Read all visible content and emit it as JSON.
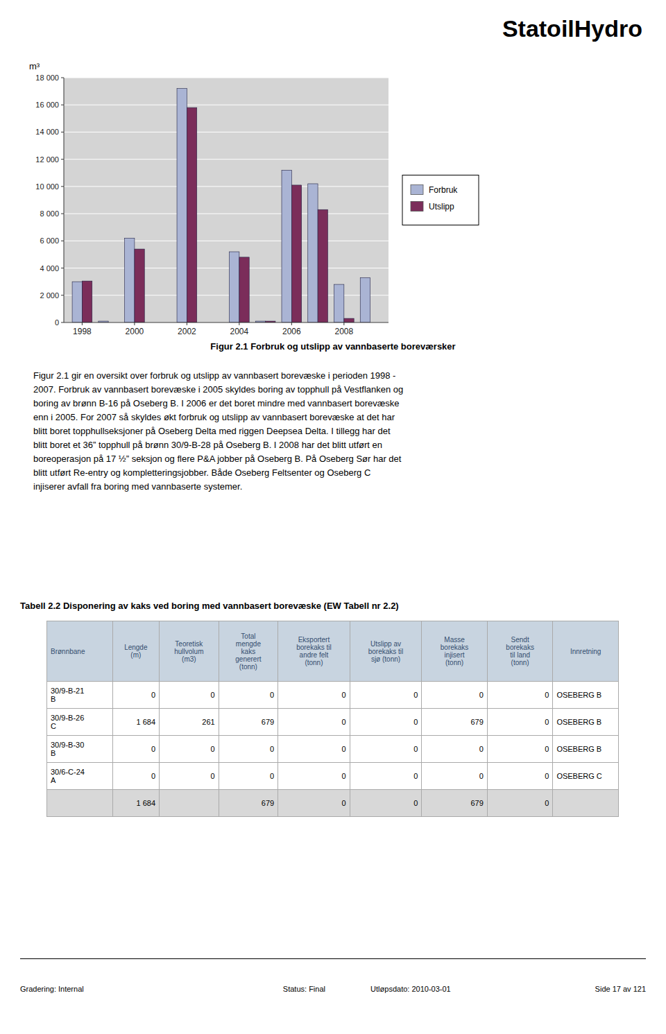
{
  "logo_text": "StatoilHydro",
  "chart_data": {
    "type": "bar",
    "y_label": "m³",
    "categories": [
      "1998",
      null,
      "2000",
      null,
      "2002",
      null,
      "2004",
      null,
      "2006",
      null,
      "2008",
      null
    ],
    "series": [
      {
        "name": "Forbruk",
        "color": "#aab4d4",
        "values": [
          3000,
          100,
          6200,
          0,
          17200,
          0,
          5200,
          100,
          11200,
          10200,
          2800,
          3300
        ]
      },
      {
        "name": "Utslipp",
        "color": "#7b2d5a",
        "values": [
          3050,
          0,
          5400,
          0,
          15800,
          0,
          4800,
          100,
          10100,
          8300,
          300,
          0
        ]
      }
    ],
    "ylim": [
      0,
      18000
    ],
    "yticks": [
      0,
      {
        "value": 2000,
        "label": "2 000"
      },
      {
        "value": 4000,
        "label": "4 000"
      },
      {
        "value": 6000,
        "label": "6 000"
      },
      {
        "value": 8000,
        "label": "8 000"
      },
      {
        "value": 10000,
        "label": "10 000"
      },
      {
        "value": 12000,
        "label": "12 000"
      },
      {
        "value": 14000,
        "label": "14 000"
      },
      {
        "value": 16000,
        "label": "16 000"
      },
      {
        "value": 18000,
        "label": "18 000"
      }
    ],
    "grid": true,
    "legend": "right"
  },
  "figure_caption": "Figur 2.1 Forbruk og utslipp av vannbaserte boreværsker",
  "body_text": [
    "Figur 2.1 gir en oversikt over forbruk og utslipp av vannbasert borevæske i perioden 1998 -",
    "2007. Forbruk av vannbasert borevæske i 2005 skyldes boring av topphull på Vestflanken og",
    "boring av brønn B-16 på Oseberg B. I 2006 er det boret mindre med vannbasert borevæske",
    "enn i 2005. For 2007 så skyldes økt forbruk og utslipp av vannbasert borevæske at det har",
    "blitt boret topphullseksjoner på Oseberg Delta med riggen Deepsea Delta. I tillegg har det",
    "blitt boret et 36” topphull på brønn 30/9-B-28 på Oseberg B. I 2008 har det blitt utført en",
    "boreoperasjon på 17 ½” seksjon og flere P&A jobber på Oseberg B. På Oseberg Sør har det",
    "blitt utført Re-entry og kompletteringsjobber. Både Oseberg Feltsenter og Oseberg C",
    "injiserer avfall fra boring med vannbaserte systemer."
  ],
  "table": {
    "title": "Tabell 2.2 Disponering av kaks ved boring med vannbasert borevæske (EW Tabell nr 2.2)",
    "columns": [
      "Brønnbane",
      "Lengde\n(m)",
      "Teoretisk\nhullvolum\n(m3)",
      "Total\nmengde\nkaks\ngenerert\n(tonn)",
      "Eksportert\nborekaks til\nandre felt\n(tonn)",
      "Utslipp av\nborekaks til\nsjø (tonn)",
      "Masse\nborekaks\ninjisert\n(tonn)",
      "Sendt\nborekaks\ntil land\n(tonn)",
      "Innretning"
    ],
    "rows": [
      [
        "30/9-B-21\nB",
        "0",
        "0",
        "0",
        "0",
        "0",
        "0",
        "0",
        "OSEBERG B"
      ],
      [
        "30/9-B-26\nC",
        "1 684",
        "261",
        "679",
        "0",
        "0",
        "679",
        "0",
        "OSEBERG B"
      ],
      [
        "30/9-B-30\nB",
        "0",
        "0",
        "0",
        "0",
        "0",
        "0",
        "0",
        "OSEBERG B"
      ],
      [
        "30/6-C-24\nA",
        "0",
        "0",
        "0",
        "0",
        "0",
        "0",
        "0",
        "OSEBERG C"
      ],
      [
        null,
        "1 684",
        null,
        "679",
        "0",
        "0",
        "679",
        "0",
        null
      ]
    ]
  },
  "footer": {
    "left": "Gradering: Internal",
    "center_1": "Status: Final",
    "center_2": "Utløpsdato: 2010-03-01",
    "right": "Side 17 av 121"
  }
}
